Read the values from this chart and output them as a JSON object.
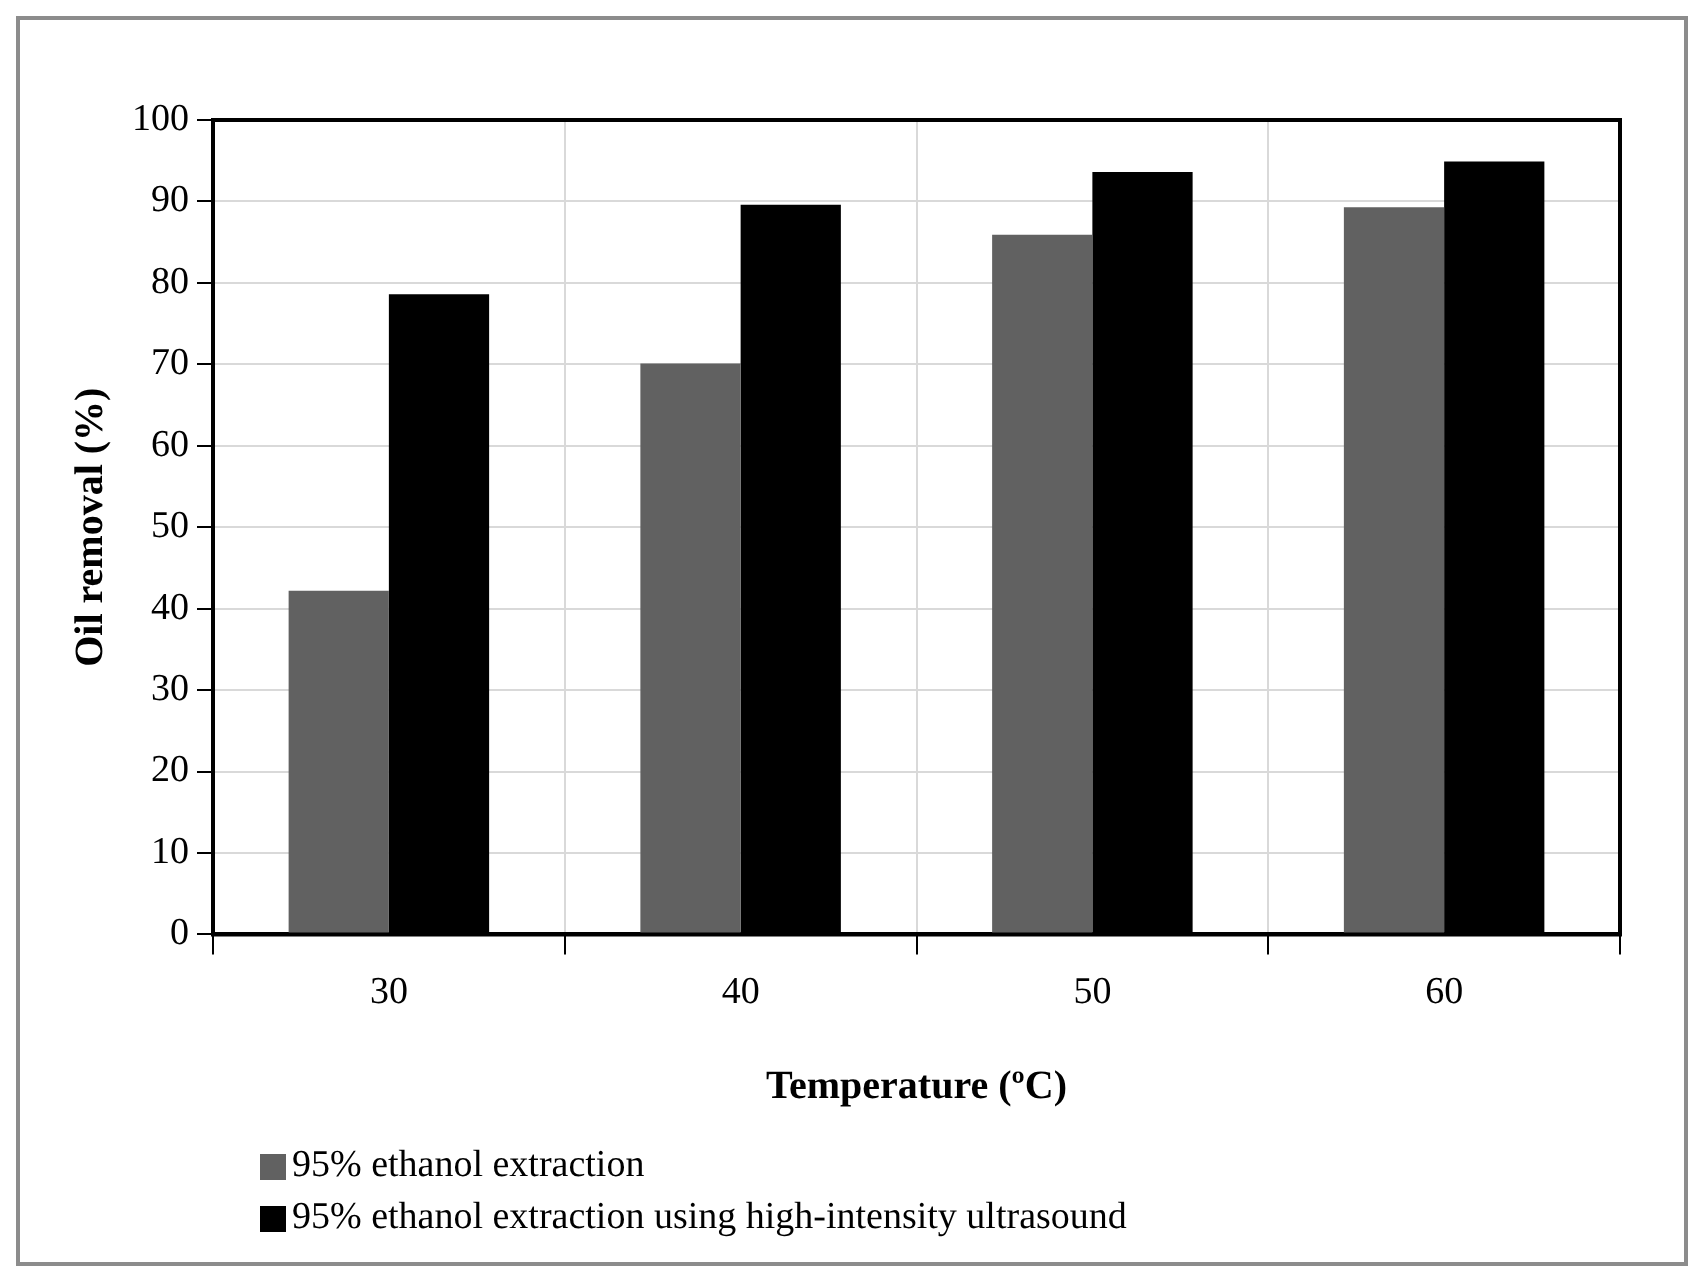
{
  "chart_data": {
    "type": "bar",
    "xlabel": "Temperature (ºC)",
    "ylabel": "Oil removal (%)",
    "categories": [
      "30",
      "40",
      "50",
      "60"
    ],
    "series": [
      {
        "name": "95% ethanol extraction",
        "color": "#616161",
        "values": [
          42.2,
          70.1,
          85.9,
          89.3
        ]
      },
      {
        "name": "95% ethanol extraction using high-intensity ultrasound",
        "color": "#000000",
        "values": [
          78.6,
          89.6,
          93.6,
          94.9
        ]
      }
    ],
    "ylim": [
      0,
      100
    ],
    "yticks": [
      0,
      10,
      20,
      30,
      40,
      50,
      60,
      70,
      80,
      90,
      100
    ],
    "grid": true,
    "legend": "bottom"
  }
}
